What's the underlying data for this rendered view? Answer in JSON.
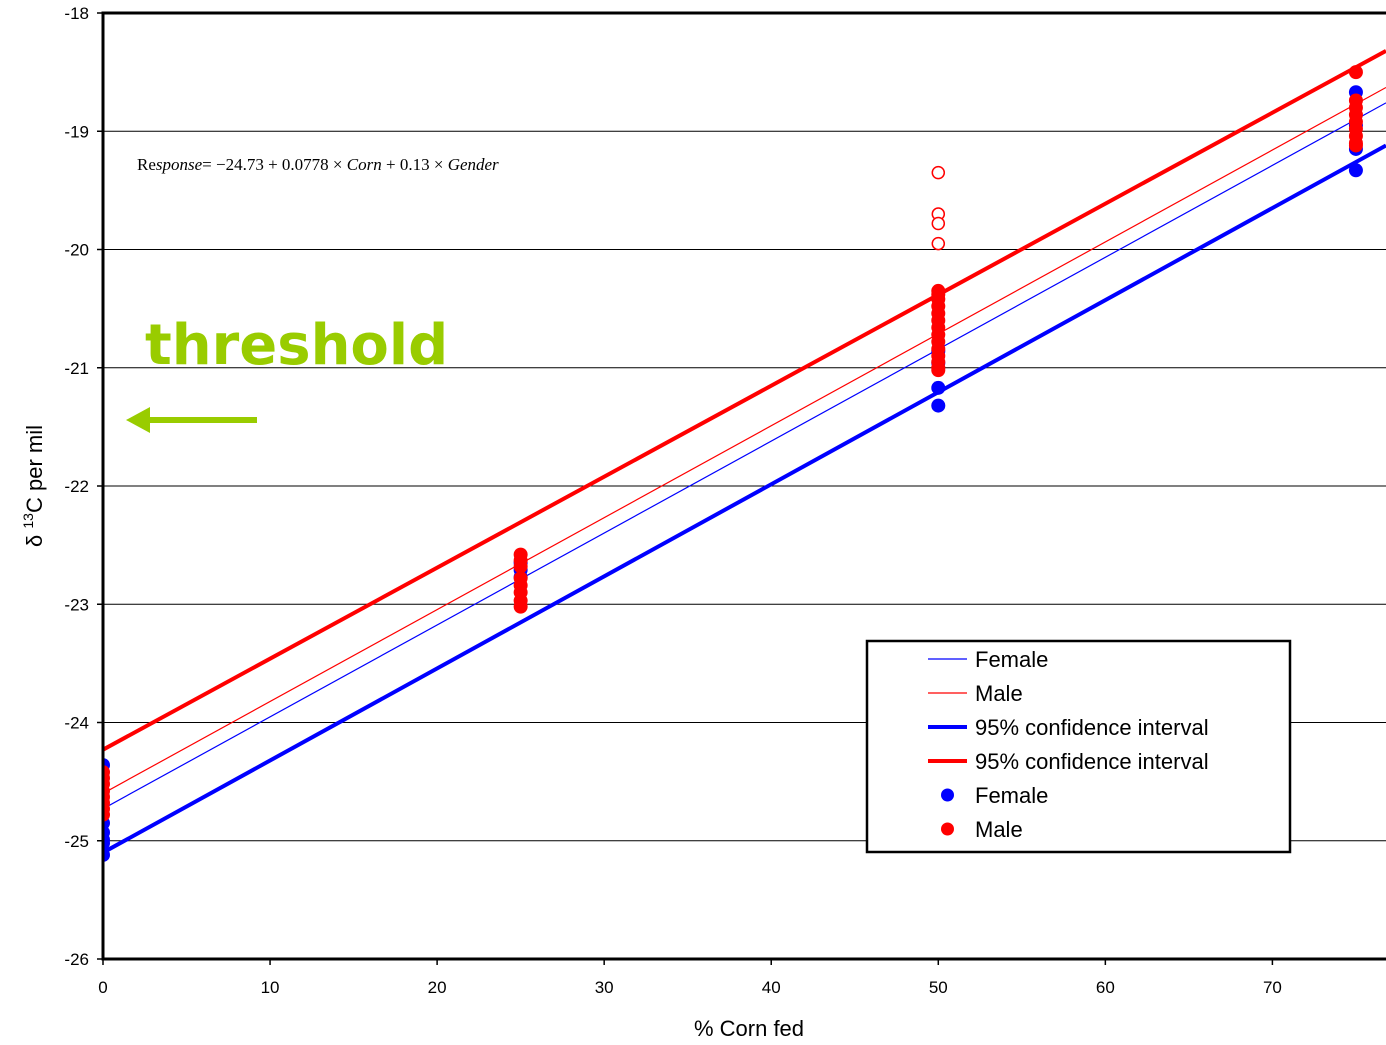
{
  "chart_data": {
    "type": "scatter",
    "title": "",
    "xlabel": "% Corn fed",
    "ylabel_prefix": "δ ",
    "ylabel_sup": "13",
    "ylabel_main": "C per mil",
    "xlim": [
      0,
      76.8
    ],
    "ylim": [
      -26,
      -18
    ],
    "x_ticks": [
      0,
      10,
      20,
      30,
      40,
      50,
      60,
      70
    ],
    "y_ticks": [
      -18,
      -19,
      -20,
      -21,
      -22,
      -23,
      -24,
      -25,
      -26
    ],
    "x_tick_labels": [
      "0",
      "10",
      "20",
      "30",
      "40",
      "50",
      "60",
      "70"
    ],
    "y_tick_labels": [
      "-18",
      "-19",
      "-20",
      "-21",
      "-22",
      "-23",
      "-24",
      "-25",
      "-26"
    ],
    "grid": "horizontal",
    "equation": {
      "parts": [
        "Re",
        "sponse",
        "= −24.73 + 0.0778 × ",
        "Corn",
        " + 0.13 × ",
        "Gender"
      ]
    },
    "annotation": {
      "text": "threshold",
      "color": "#99cc00",
      "arrow": "left"
    },
    "lines": [
      {
        "name": "Female",
        "color": "#0000ff",
        "width": 1.2,
        "x": [
          0,
          76.8
        ],
        "y": [
          -24.73,
          -18.76
        ]
      },
      {
        "name": "Male",
        "color": "#ff0000",
        "width": 1.2,
        "x": [
          0,
          76.8
        ],
        "y": [
          -24.6,
          -18.63
        ]
      },
      {
        "name": "95% confidence interval",
        "color": "#0000ff",
        "width": 4,
        "x": [
          0,
          76.8
        ],
        "y": [
          -25.1,
          -19.12
        ]
      },
      {
        "name": "95% confidence interval",
        "color": "#ff0000",
        "width": 4,
        "x": [
          0,
          76.8
        ],
        "y": [
          -24.23,
          -18.32
        ]
      }
    ],
    "series": [
      {
        "name": "Female",
        "color": "#0000ff",
        "marker": "filled-circle",
        "x": [
          0,
          0,
          0,
          0,
          0,
          0,
          25,
          25,
          25,
          50,
          50,
          50,
          50,
          75,
          75,
          75,
          75
        ],
        "y": [
          -24.36,
          -24.85,
          -24.93,
          -24.99,
          -25.02,
          -25.12,
          -22.65,
          -22.71,
          -22.77,
          -20.86,
          -20.96,
          -21.17,
          -21.32,
          -18.67,
          -18.95,
          -19.15,
          -19.33
        ]
      },
      {
        "name": "Male",
        "color": "#ff0000",
        "marker": "filled-circle",
        "x": [
          0,
          0,
          0,
          0,
          0,
          0,
          0,
          0,
          25,
          25,
          25,
          25,
          25,
          25,
          25,
          25,
          50,
          50,
          50,
          50,
          50,
          50,
          50,
          50,
          50,
          50,
          50,
          50,
          50,
          50,
          75,
          75,
          75,
          75,
          75,
          75,
          75,
          75,
          75
        ],
        "y": [
          -24.42,
          -24.47,
          -24.52,
          -24.58,
          -24.63,
          -24.68,
          -24.73,
          -24.78,
          -22.58,
          -22.63,
          -22.68,
          -22.78,
          -22.84,
          -22.9,
          -22.97,
          -23.02,
          -20.35,
          -20.42,
          -20.48,
          -20.54,
          -20.6,
          -20.66,
          -20.72,
          -20.78,
          -20.84,
          -20.9,
          -20.95,
          -21.0,
          -21.02,
          -20.38,
          -18.5,
          -18.74,
          -18.8,
          -18.86,
          -18.92,
          -18.98,
          -19.04,
          -19.1,
          -19.12
        ]
      },
      {
        "name": "Male outliers",
        "color": "#ff0000",
        "marker": "open-circle",
        "x": [
          50,
          50,
          50,
          50
        ],
        "y": [
          -19.35,
          -19.7,
          -19.78,
          -19.95
        ]
      }
    ],
    "legend": {
      "placement": "bottom-right",
      "entries": [
        {
          "label": "Female",
          "kind": "thin-line",
          "color": "#0000ff"
        },
        {
          "label": "Male",
          "kind": "thin-line",
          "color": "#ff0000"
        },
        {
          "label": "95% confidence interval",
          "kind": "thick-line",
          "color": "#0000ff"
        },
        {
          "label": "95% confidence interval",
          "kind": "thick-line",
          "color": "#ff0000"
        },
        {
          "label": "Female",
          "kind": "dot",
          "color": "#0000ff"
        },
        {
          "label": "Male",
          "kind": "dot",
          "color": "#ff0000"
        }
      ]
    }
  }
}
